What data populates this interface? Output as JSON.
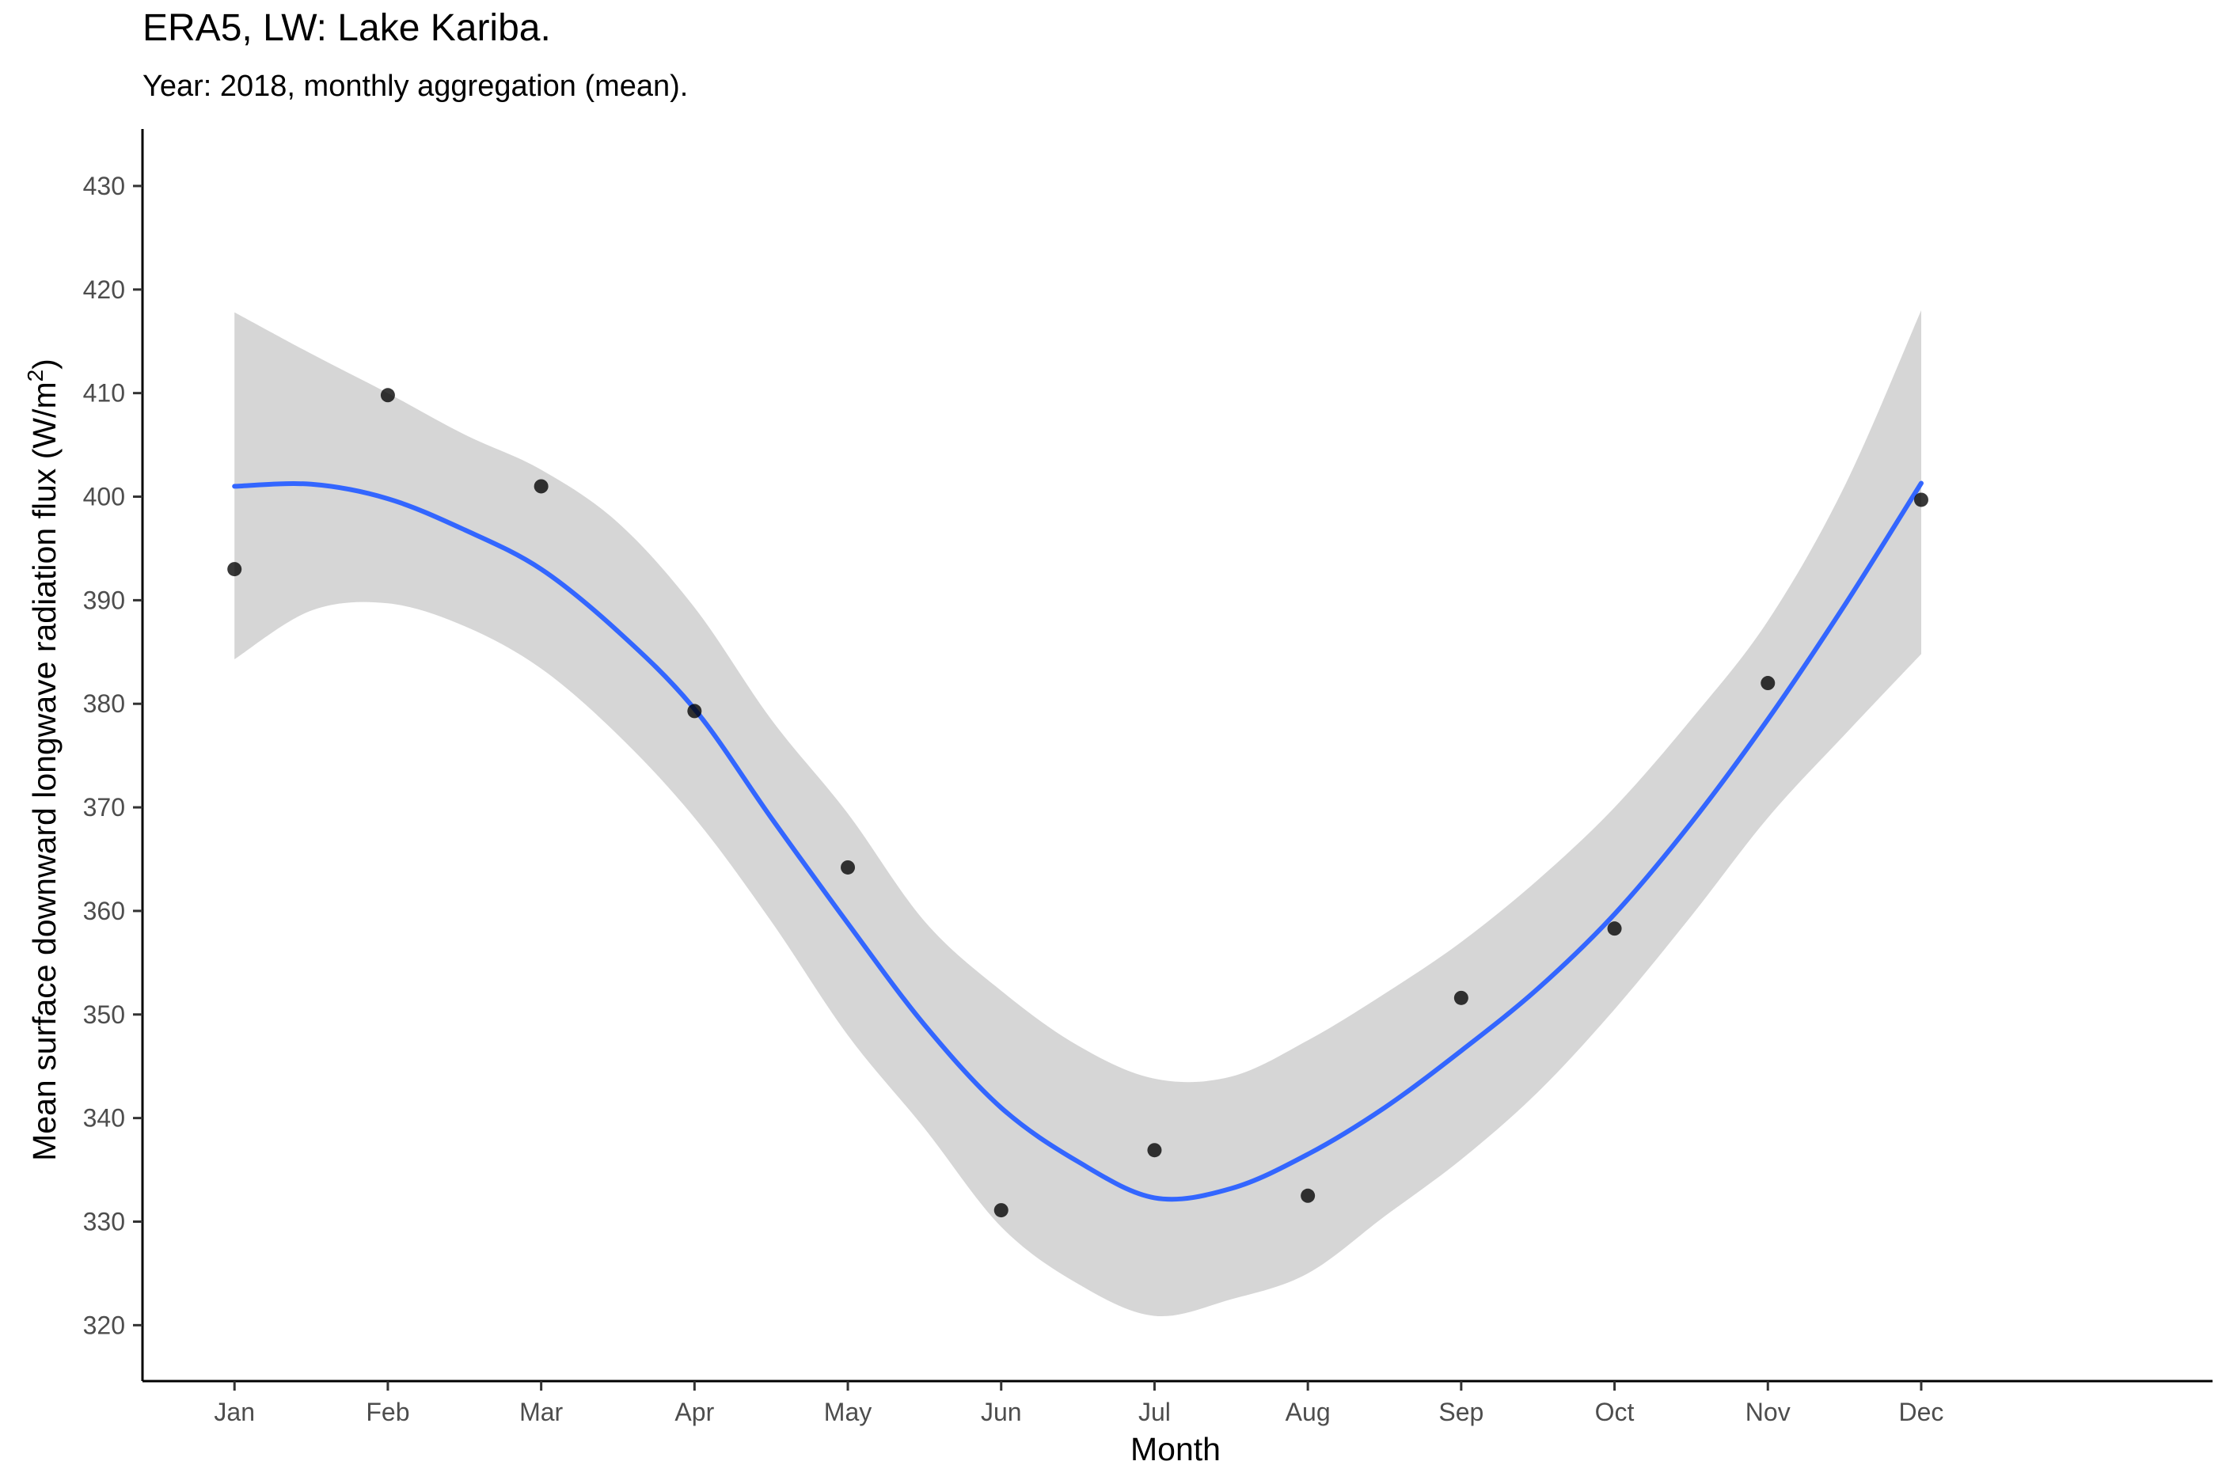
{
  "chart_data": {
    "type": "scatter",
    "title": "ERA5, LW: Lake Kariba.",
    "subtitle": "Year: 2018, monthly aggregation (mean).",
    "xlabel": "Month",
    "ylabel": "Mean surface downward longwave radiation flux (W/m",
    "ylabel_superscript": "2",
    "ylabel_close": ")",
    "categories": [
      "Jan",
      "Feb",
      "Mar",
      "Apr",
      "May",
      "Jun",
      "Jul",
      "Aug",
      "Sep",
      "Oct",
      "Nov",
      "Dec"
    ],
    "series": [
      {
        "values": [
          393.0,
          409.8,
          401.0,
          379.3,
          364.2,
          331.1,
          336.9,
          332.5,
          351.6,
          358.3,
          382.0,
          399.7
        ]
      }
    ],
    "smooth": {
      "method": "loess",
      "color": "#3366FF",
      "ribbon_color": "#D6D6D6",
      "x": [
        1,
        1.5,
        2,
        2.5,
        3,
        3.5,
        4,
        4.5,
        5,
        5.5,
        6,
        6.5,
        7,
        7.5,
        8,
        8.5,
        9,
        9.5,
        10,
        10.5,
        11,
        11.5,
        12
      ],
      "fit": [
        401.0,
        401.2,
        399.8,
        396.8,
        393.0,
        387.0,
        379.5,
        369.0,
        358.8,
        349.0,
        341.0,
        335.8,
        332.3,
        333.2,
        336.5,
        341.0,
        346.5,
        352.5,
        359.7,
        368.5,
        378.5,
        389.5,
        401.3
      ],
      "lower": [
        384.3,
        389.0,
        389.7,
        387.5,
        383.4,
        377.0,
        369.0,
        359.0,
        348.0,
        339.0,
        329.5,
        324.0,
        320.9,
        322.5,
        325.0,
        330.5,
        336.0,
        342.5,
        350.5,
        359.5,
        369.0,
        377.0,
        384.8
      ],
      "upper": [
        417.8,
        413.8,
        410.0,
        406.0,
        402.6,
        397.5,
        389.3,
        378.5,
        369.4,
        359.0,
        352.3,
        347.0,
        343.8,
        344.0,
        347.5,
        352.0,
        357.0,
        363.0,
        370.0,
        378.5,
        388.0,
        401.0,
        418.0
      ]
    },
    "ylim": [
      314.6,
      435.5
    ],
    "yticks": [
      320,
      330,
      340,
      350,
      360,
      370,
      380,
      390,
      400,
      410,
      420,
      430
    ],
    "xlim": [
      0.4,
      13.9
    ],
    "grid": false,
    "legend": "none",
    "point_color": "#000000"
  }
}
